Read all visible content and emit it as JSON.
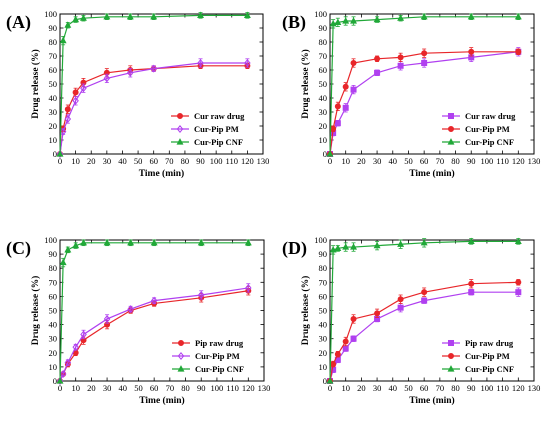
{
  "chart_data": [
    {
      "type": "line",
      "panel_label": "(A)",
      "xlabel": "Time (min)",
      "ylabel": "Drug release (%)",
      "xlim": [
        0,
        130
      ],
      "ylim": [
        0,
        100
      ],
      "xticks": [
        0,
        10,
        20,
        30,
        40,
        50,
        60,
        70,
        80,
        90,
        100,
        110,
        120,
        130
      ],
      "yticks": [
        0,
        10,
        20,
        30,
        40,
        50,
        60,
        70,
        80,
        90,
        100
      ],
      "grid": false,
      "legend_position": "bottom-right",
      "series": [
        {
          "name": "Cur raw drug",
          "color": "#e8262a",
          "marker": "circle",
          "x": [
            0,
            2,
            5,
            10,
            15,
            30,
            45,
            60,
            90,
            120
          ],
          "y": [
            0,
            18,
            32,
            44,
            51,
            58,
            60,
            61,
            63,
            63
          ],
          "err": [
            0,
            2,
            3,
            3,
            3,
            3,
            3,
            2,
            2,
            2
          ]
        },
        {
          "name": "Cur-Pip PM",
          "color": "#b040f0",
          "marker": "diamond",
          "x": [
            0,
            2,
            5,
            10,
            15,
            30,
            45,
            60,
            90,
            120
          ],
          "y": [
            0,
            16,
            25,
            38,
            47,
            54,
            58,
            61,
            65,
            65
          ],
          "err": [
            0,
            2,
            3,
            3,
            3,
            3,
            3,
            2,
            3,
            3
          ]
        },
        {
          "name": "Cur-Pip CNF",
          "color": "#21a838",
          "marker": "triangle",
          "x": [
            0,
            2,
            5,
            10,
            15,
            30,
            45,
            60,
            90,
            120
          ],
          "y": [
            0,
            81,
            92,
            96,
            97,
            98,
            98,
            98,
            99,
            99
          ],
          "err": [
            0,
            3,
            2,
            2,
            2,
            2,
            2,
            2,
            2,
            2
          ]
        }
      ]
    },
    {
      "type": "line",
      "panel_label": "(B)",
      "xlabel": "Time (min)",
      "ylabel": "Drug release (%)",
      "xlim": [
        0,
        130
      ],
      "ylim": [
        0,
        100
      ],
      "xticks": [
        0,
        10,
        20,
        30,
        40,
        50,
        60,
        70,
        80,
        90,
        100,
        110,
        120,
        130
      ],
      "yticks": [
        0,
        10,
        20,
        30,
        40,
        50,
        60,
        70,
        80,
        90,
        100
      ],
      "grid": false,
      "legend_position": "bottom-right",
      "series": [
        {
          "name": "Cur raw drug",
          "color": "#b040f0",
          "marker": "square",
          "x": [
            0,
            2,
            5,
            10,
            15,
            30,
            45,
            60,
            90,
            120
          ],
          "y": [
            0,
            15,
            22,
            33,
            46,
            58,
            63,
            65,
            69,
            73
          ],
          "err": [
            0,
            2,
            2,
            3,
            3,
            2,
            3,
            3,
            3,
            3
          ]
        },
        {
          "name": "Cur-Pip PM",
          "color": "#e8262a",
          "marker": "circle",
          "x": [
            0,
            2,
            5,
            10,
            15,
            30,
            45,
            60,
            90,
            120
          ],
          "y": [
            0,
            18,
            34,
            48,
            65,
            68,
            69,
            72,
            73,
            73
          ],
          "err": [
            0,
            2,
            3,
            3,
            3,
            2,
            3,
            3,
            3,
            2
          ]
        },
        {
          "name": "Cur-Pip CNF",
          "color": "#21a838",
          "marker": "triangle",
          "x": [
            0,
            2,
            5,
            10,
            15,
            30,
            45,
            60,
            90,
            120
          ],
          "y": [
            0,
            93,
            94,
            95,
            95,
            96,
            97,
            98,
            98,
            98
          ],
          "err": [
            0,
            3,
            3,
            3,
            3,
            2,
            2,
            2,
            2,
            2
          ]
        }
      ]
    },
    {
      "type": "line",
      "panel_label": "(C)",
      "xlabel": "Time (min)",
      "ylabel": "Drug release (%)",
      "xlim": [
        0,
        130
      ],
      "ylim": [
        0,
        100
      ],
      "xticks": [
        0,
        10,
        20,
        30,
        40,
        50,
        60,
        70,
        80,
        90,
        100,
        110,
        120,
        130
      ],
      "yticks": [
        0,
        10,
        20,
        30,
        40,
        50,
        60,
        70,
        80,
        90,
        100
      ],
      "grid": false,
      "legend_position": "bottom-right",
      "series": [
        {
          "name": "Pip raw drug",
          "color": "#e8262a",
          "marker": "circle",
          "x": [
            0,
            2,
            5,
            10,
            15,
            30,
            45,
            60,
            90,
            120
          ],
          "y": [
            0,
            5,
            12,
            20,
            29,
            40,
            50,
            55,
            59,
            64
          ],
          "err": [
            0,
            1,
            2,
            2,
            3,
            3,
            2,
            2,
            3,
            3
          ]
        },
        {
          "name": "Cur-Pip PM",
          "color": "#b040f0",
          "marker": "diamond",
          "x": [
            0,
            2,
            5,
            10,
            15,
            30,
            45,
            60,
            90,
            120
          ],
          "y": [
            0,
            5,
            13,
            24,
            33,
            44,
            51,
            57,
            61,
            66
          ],
          "err": [
            0,
            1,
            2,
            2,
            3,
            3,
            2,
            2,
            3,
            3
          ]
        },
        {
          "name": "Cur-Pip CNF",
          "color": "#21a838",
          "marker": "triangle",
          "x": [
            0,
            2,
            5,
            10,
            15,
            30,
            45,
            60,
            90,
            120
          ],
          "y": [
            0,
            84,
            93,
            96,
            98,
            98,
            98,
            98,
            98,
            98
          ],
          "err": [
            0,
            3,
            2,
            2,
            2,
            2,
            2,
            2,
            2,
            2
          ]
        }
      ]
    },
    {
      "type": "line",
      "panel_label": "(D)",
      "xlabel": "Time (min)",
      "ylabel": "Drug release (%)",
      "xlim": [
        0,
        130
      ],
      "ylim": [
        0,
        100
      ],
      "xticks": [
        0,
        10,
        20,
        30,
        40,
        50,
        60,
        70,
        80,
        90,
        100,
        110,
        120,
        130
      ],
      "yticks": [
        0,
        10,
        20,
        30,
        40,
        50,
        60,
        70,
        80,
        90,
        100
      ],
      "grid": false,
      "legend_position": "bottom-right",
      "series": [
        {
          "name": "Pip raw drug",
          "color": "#b040f0",
          "marker": "square",
          "x": [
            0,
            2,
            5,
            10,
            15,
            30,
            45,
            60,
            90,
            120
          ],
          "y": [
            0,
            8,
            15,
            23,
            30,
            44,
            52,
            57,
            63,
            63
          ],
          "err": [
            0,
            2,
            2,
            2,
            2,
            2,
            3,
            2,
            2,
            3
          ]
        },
        {
          "name": "Cur-Pip PM",
          "color": "#e8262a",
          "marker": "circle",
          "x": [
            0,
            2,
            5,
            10,
            15,
            30,
            45,
            60,
            90,
            120
          ],
          "y": [
            0,
            12,
            19,
            28,
            44,
            48,
            58,
            63,
            69,
            70
          ],
          "err": [
            0,
            2,
            2,
            3,
            3,
            3,
            3,
            3,
            3,
            2
          ]
        },
        {
          "name": "Cur-Pip CNF",
          "color": "#21a838",
          "marker": "triangle",
          "x": [
            0,
            2,
            5,
            10,
            15,
            30,
            45,
            60,
            90,
            120
          ],
          "y": [
            0,
            93,
            94,
            95,
            95,
            96,
            97,
            98,
            99,
            99
          ],
          "err": [
            0,
            3,
            2,
            3,
            3,
            3,
            3,
            3,
            2,
            2
          ]
        }
      ]
    }
  ]
}
